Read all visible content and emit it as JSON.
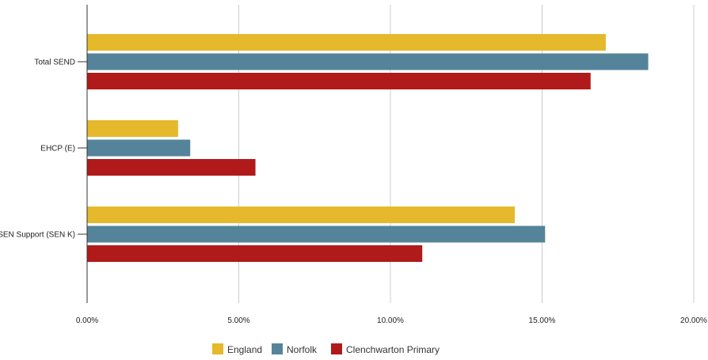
{
  "chart_data": {
    "type": "bar",
    "orientation": "horizontal",
    "categories": [
      "Total SEND",
      "EHCP (E)",
      "SEN Support (SEN K)"
    ],
    "series": [
      {
        "name": "England",
        "color": "#e6b82b",
        "values": [
          17.1,
          3.0,
          14.1
        ]
      },
      {
        "name": "Norfolk",
        "color": "#55849a",
        "values": [
          18.5,
          3.4,
          15.1
        ]
      },
      {
        "name": "Clenchwarton Primary",
        "color": "#b01a1a",
        "values": [
          16.6,
          5.55,
          11.05
        ]
      }
    ],
    "xlim": [
      0,
      20
    ],
    "x_ticks": [
      0,
      5,
      10,
      15,
      20
    ],
    "x_tick_labels": [
      "0.00%",
      "5.00%",
      "10.00%",
      "15.00%",
      "20.00%"
    ],
    "grid": "vertical",
    "legend_position": "bottom"
  }
}
